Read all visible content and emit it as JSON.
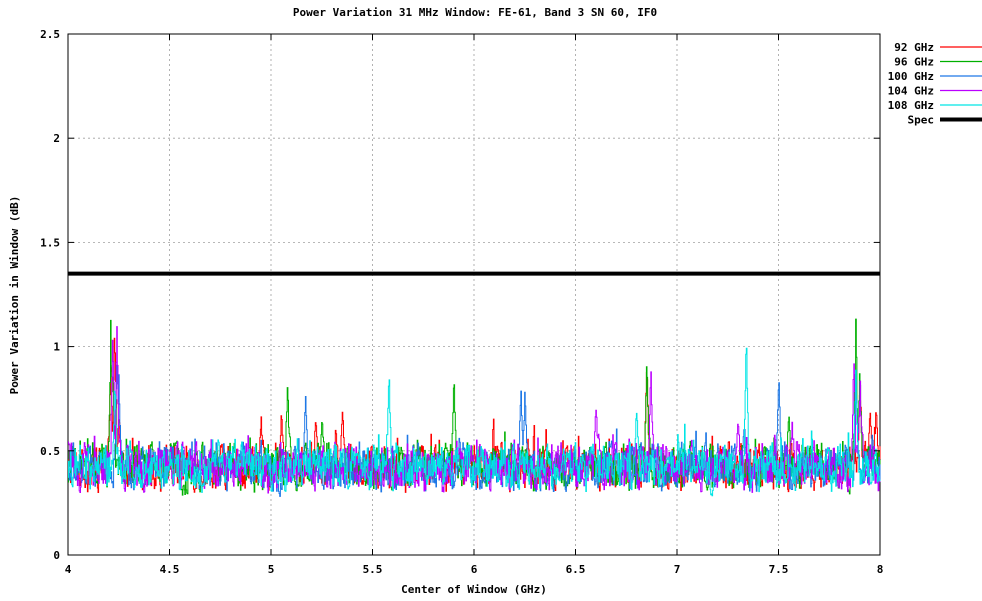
{
  "chart_data": {
    "type": "line",
    "title": "Power Variation 31 MHz Window: FE-61, Band 3 SN 60, IF0",
    "xlabel": "Center of Window (GHz)",
    "ylabel": "Power Variation in Window (dB)",
    "xlim": [
      4,
      8
    ],
    "ylim": [
      0,
      2.5
    ],
    "x_ticks": [
      4,
      4.5,
      5,
      5.5,
      6,
      6.5,
      7,
      7.5,
      8
    ],
    "x_tick_labels": [
      "4",
      "4.5",
      "5",
      "5.5",
      "6",
      "6.5",
      "7",
      "7.5",
      "8"
    ],
    "y_ticks": [
      0,
      0.5,
      1,
      1.5,
      2,
      2.5
    ],
    "y_tick_labels": [
      "0",
      "0.5",
      "1",
      "1.5",
      "2",
      "2.5"
    ],
    "grid": true,
    "legend_position": "top-right, outside plot",
    "series": [
      {
        "name": "92 GHz",
        "color": "#ff0000",
        "baseline": 0.42,
        "noise": 0.13,
        "x": [
          4.0,
          4.21,
          4.23,
          4.25,
          4.95,
          5.05,
          5.22,
          5.35,
          6.85,
          7.9,
          7.95,
          7.98
        ],
        "y": [
          0.45,
          1.05,
          1.2,
          0.7,
          0.68,
          0.72,
          0.72,
          0.76,
          1.0,
          0.9,
          0.74,
          0.75
        ]
      },
      {
        "name": "96 GHz",
        "color": "#00b000",
        "baseline": 0.42,
        "noise": 0.13,
        "x": [
          4.21,
          4.22,
          5.08,
          5.25,
          5.9,
          6.85,
          7.55,
          7.88,
          7.9
        ],
        "y": [
          1.21,
          0.95,
          0.87,
          0.7,
          0.93,
          1.02,
          0.75,
          1.19,
          0.95
        ]
      },
      {
        "name": "100 GHz",
        "color": "#1e78e6",
        "baseline": 0.42,
        "noise": 0.13,
        "x": [
          4.24,
          4.25,
          5.17,
          6.23,
          6.25,
          7.33,
          7.5,
          7.88
        ],
        "y": [
          1.01,
          0.9,
          0.83,
          0.89,
          0.85,
          0.65,
          0.9,
          0.9
        ]
      },
      {
        "name": "104 GHz",
        "color": "#bb00ff",
        "baseline": 0.42,
        "noise": 0.13,
        "x": [
          4.22,
          4.24,
          6.6,
          6.87,
          7.3,
          7.87,
          7.9
        ],
        "y": [
          1.19,
          1.15,
          0.78,
          0.97,
          0.7,
          1.0,
          0.9
        ]
      },
      {
        "name": "108 GHz",
        "color": "#00e5e5",
        "baseline": 0.42,
        "noise": 0.13,
        "x": [
          4.23,
          5.58,
          6.8,
          7.34,
          7.88
        ],
        "y": [
          0.9,
          0.95,
          0.75,
          1.16,
          0.95
        ]
      },
      {
        "name": "Spec",
        "color": "#000000",
        "constant": 1.35,
        "x": [
          4,
          8
        ],
        "y": [
          1.35,
          1.35
        ]
      }
    ]
  }
}
